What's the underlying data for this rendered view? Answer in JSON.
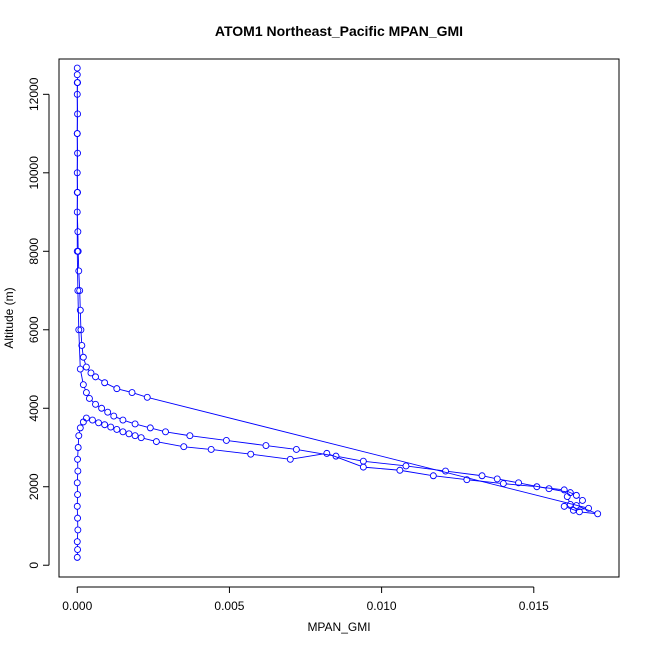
{
  "chart_data": {
    "type": "line",
    "title": "ATOM1 Northeast_Pacific MPAN_GMI",
    "xlabel": "MPAN_GMI",
    "ylabel": "Altitude (m)",
    "xlim": [
      -0.0006,
      0.0178
    ],
    "ylim": [
      -300,
      12900
    ],
    "x_ticks": [
      0.0,
      0.005,
      0.01,
      0.015
    ],
    "x_tick_labels": [
      "0.000",
      "0.005",
      "0.010",
      "0.015"
    ],
    "y_ticks": [
      0,
      2000,
      4000,
      6000,
      8000,
      10000,
      12000
    ],
    "y_tick_labels": [
      "0",
      "2000",
      "4000",
      "6000",
      "8000",
      "10000",
      "12000"
    ],
    "grid": false,
    "color": "#0000ff",
    "marker": "open-circle",
    "series": [
      {
        "points": [
          [
            0.0,
            12670
          ],
          [
            0.0,
            12500
          ],
          [
            1e-05,
            12300
          ],
          [
            0.0,
            12000
          ],
          [
            1e-05,
            11500
          ],
          [
            0.0,
            11000
          ],
          [
            1e-05,
            10500
          ],
          [
            0.0,
            10000
          ],
          [
            1e-05,
            9500
          ],
          [
            0.0,
            9000
          ],
          [
            2e-05,
            8500
          ],
          [
            3e-05,
            8000
          ],
          [
            5e-05,
            7500
          ],
          [
            8e-05,
            7000
          ],
          [
            0.0001,
            6500
          ],
          [
            0.00012,
            6000
          ],
          [
            0.00015,
            5600
          ],
          [
            0.0002,
            5300
          ],
          [
            0.0003,
            5050
          ],
          [
            0.00045,
            4900
          ],
          [
            0.0006,
            4800
          ],
          [
            0.0009,
            4650
          ],
          [
            0.0013,
            4500
          ],
          [
            0.0018,
            4400
          ],
          [
            0.0023,
            4280
          ],
          [
            0.0168,
            1450
          ],
          [
            0.0163,
            1400
          ],
          [
            0.0162,
            1550
          ],
          [
            0.0161,
            1750
          ],
          [
            0.0162,
            1850
          ],
          [
            0.0155,
            1950
          ],
          [
            0.0145,
            2100
          ],
          [
            0.0138,
            2200
          ],
          [
            0.0133,
            2280
          ],
          [
            0.0121,
            2400
          ],
          [
            0.0108,
            2530
          ],
          [
            0.0094,
            2650
          ],
          [
            0.0085,
            2780
          ],
          [
            0.0072,
            2950
          ],
          [
            0.0062,
            3050
          ],
          [
            0.0049,
            3180
          ],
          [
            0.0037,
            3300
          ],
          [
            0.0029,
            3400
          ],
          [
            0.0024,
            3500
          ],
          [
            0.0019,
            3600
          ],
          [
            0.0015,
            3700
          ],
          [
            0.0012,
            3800
          ],
          [
            0.001,
            3900
          ],
          [
            0.0008,
            4000
          ],
          [
            0.0006,
            4100
          ],
          [
            0.0004,
            4250
          ],
          [
            0.0003,
            4400
          ],
          [
            0.0002,
            4600
          ],
          [
            0.0001,
            5000
          ],
          [
            5e-05,
            6000
          ],
          [
            2e-05,
            7000
          ],
          [
            0.0,
            8000
          ],
          [
            0.0,
            9500
          ],
          [
            0.0,
            11000
          ],
          [
            0.0,
            12300
          ]
        ]
      },
      {
        "points": [
          [
            0.0,
            200
          ],
          [
            1e-05,
            400
          ],
          [
            0.0,
            600
          ],
          [
            2e-05,
            900
          ],
          [
            1e-05,
            1200
          ],
          [
            0.0,
            1500
          ],
          [
            1e-05,
            1800
          ],
          [
            0.0,
            2100
          ],
          [
            2e-05,
            2400
          ],
          [
            1e-05,
            2700
          ],
          [
            3e-05,
            3000
          ],
          [
            5e-05,
            3300
          ],
          [
            0.0001,
            3500
          ],
          [
            0.0002,
            3650
          ],
          [
            0.0003,
            3750
          ],
          [
            0.0005,
            3700
          ],
          [
            0.0007,
            3630
          ],
          [
            0.0009,
            3580
          ],
          [
            0.0011,
            3520
          ],
          [
            0.0013,
            3460
          ],
          [
            0.0015,
            3400
          ],
          [
            0.0017,
            3350
          ],
          [
            0.0019,
            3300
          ],
          [
            0.0021,
            3250
          ],
          [
            0.0026,
            3150
          ],
          [
            0.0035,
            3020
          ],
          [
            0.0044,
            2950
          ],
          [
            0.0057,
            2830
          ],
          [
            0.007,
            2700
          ],
          [
            0.0082,
            2850
          ],
          [
            0.0094,
            2500
          ],
          [
            0.0106,
            2420
          ],
          [
            0.0117,
            2280
          ],
          [
            0.0128,
            2180
          ],
          [
            0.014,
            2080
          ],
          [
            0.0151,
            2000
          ],
          [
            0.016,
            1920
          ],
          [
            0.0164,
            1780
          ],
          [
            0.0166,
            1650
          ],
          [
            0.0164,
            1520
          ],
          [
            0.0171,
            1310
          ],
          [
            0.0165,
            1360
          ],
          [
            0.016,
            1500
          ]
        ]
      }
    ]
  }
}
